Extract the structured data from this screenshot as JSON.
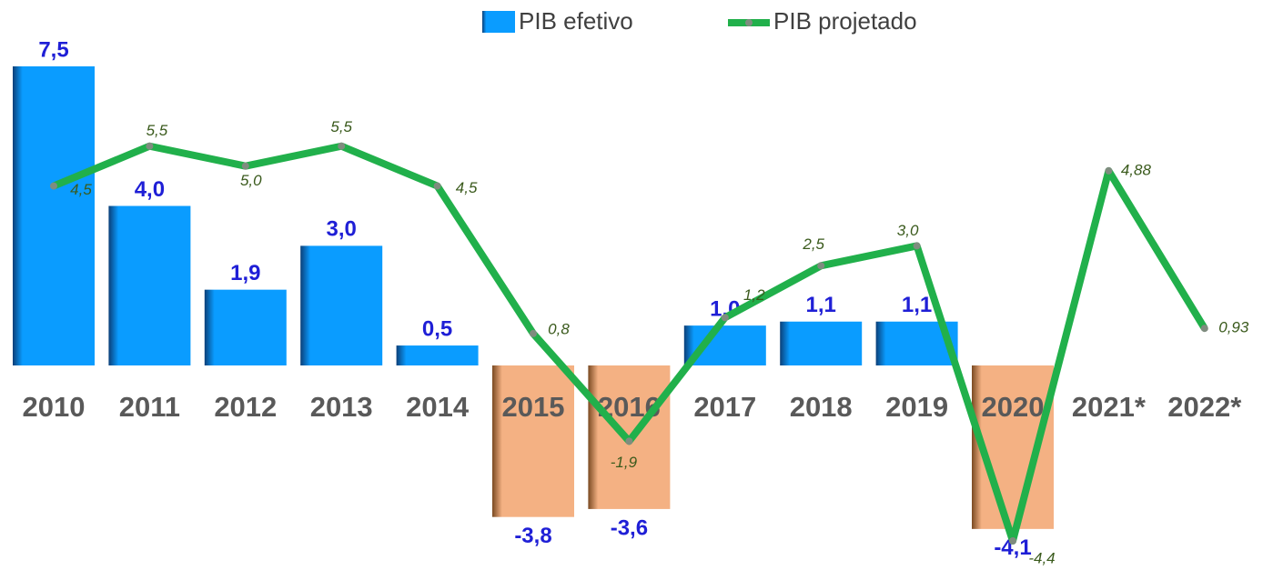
{
  "chart_data": {
    "type": "bar_line",
    "categories": [
      "2010",
      "2011",
      "2012",
      "2013",
      "2014",
      "2015",
      "2016",
      "2017",
      "2018",
      "2019",
      "2020",
      "2021*",
      "2022*"
    ],
    "series": [
      {
        "name": "PIB efetivo",
        "type": "bar",
        "color": "#0a9cff",
        "negative_color": "#f4b183",
        "values": [
          7.5,
          4.0,
          1.9,
          3.0,
          0.5,
          -3.8,
          -3.6,
          1.0,
          1.1,
          1.1,
          -4.1,
          null,
          null
        ],
        "value_labels": [
          "7,5",
          "4,0",
          "1,9",
          "3,0",
          "0,5",
          "-3,8",
          "-3,6",
          "1,0",
          "1,1",
          "1,1",
          "-4,1",
          null,
          null
        ]
      },
      {
        "name": "PIB projetado",
        "type": "line",
        "color": "#21b04b",
        "values": [
          4.5,
          5.5,
          5.0,
          5.5,
          4.5,
          0.8,
          -1.9,
          1.2,
          2.5,
          3.0,
          -4.4,
          4.88,
          0.93
        ],
        "value_labels": [
          "4,5",
          "5,5",
          "5,0",
          "5,5",
          "4,5",
          "0,8",
          "-1,9",
          "1,2",
          "2,5",
          "3,0",
          "-4,4",
          "4,88",
          "0,93"
        ]
      }
    ]
  }
}
